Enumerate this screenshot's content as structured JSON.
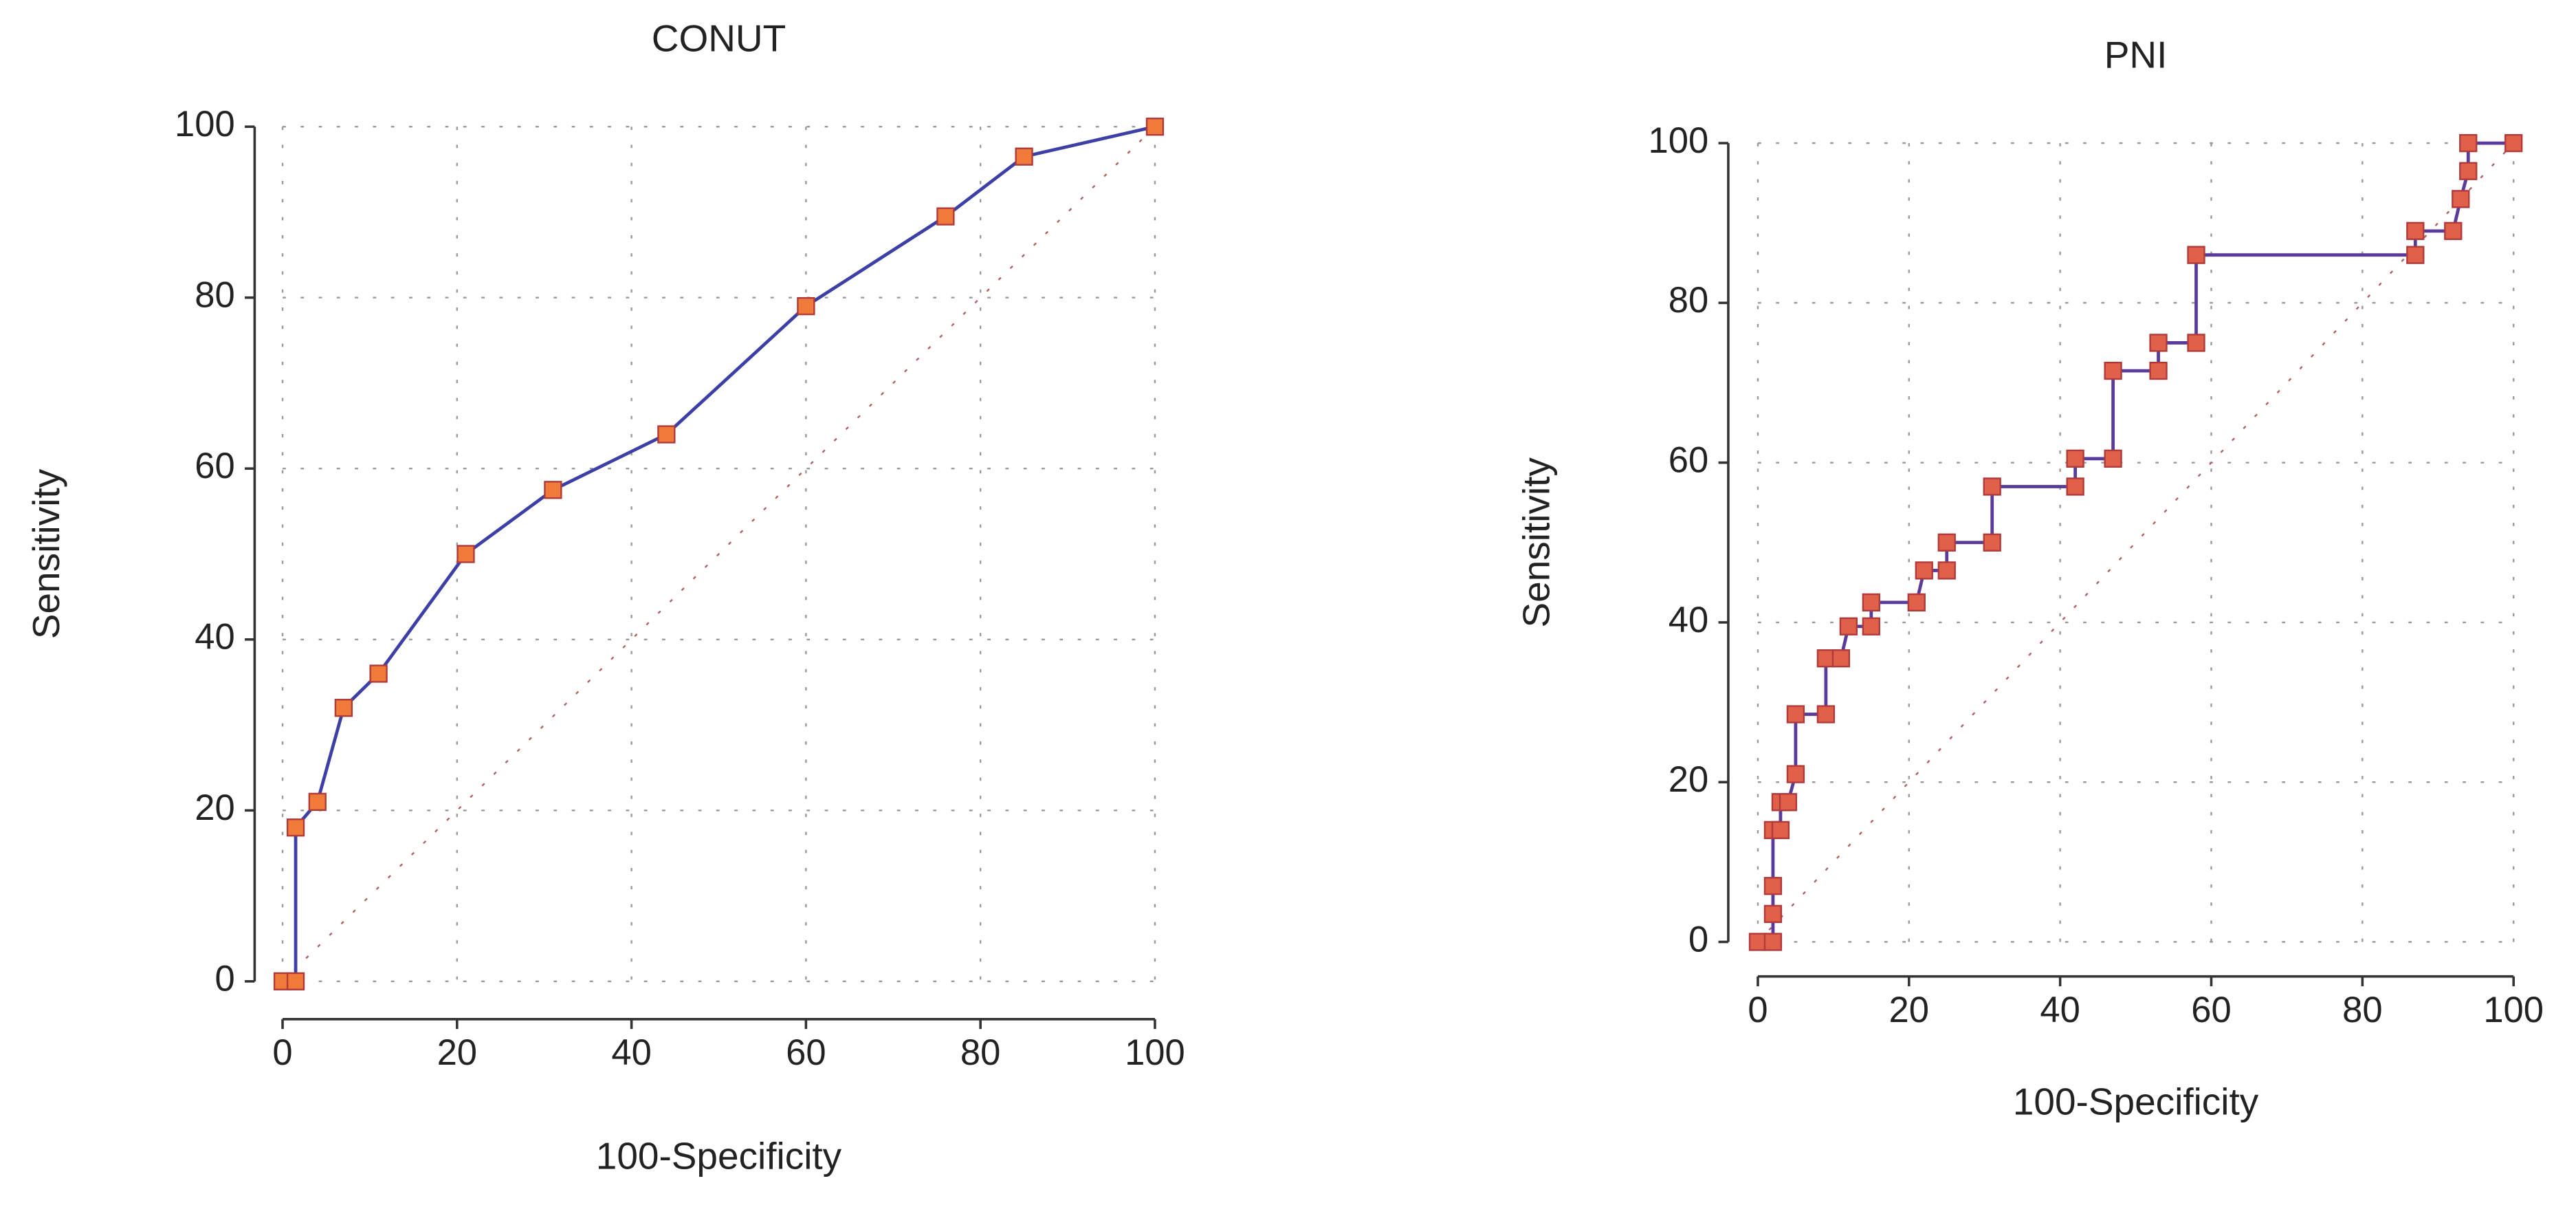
{
  "chart_data": [
    {
      "type": "line",
      "title": "CONUT",
      "xlabel": "100-Specificity",
      "ylabel": "Sensitivity",
      "x": [
        0,
        1.5,
        1.5,
        4,
        7,
        11,
        21,
        31,
        44,
        60,
        76,
        85,
        100
      ],
      "values": [
        0,
        0,
        18,
        21,
        32,
        36,
        50,
        57.5,
        64,
        79,
        89.5,
        96.5,
        100
      ],
      "color": "#3b3fa6",
      "marker_color": "#f07a3a",
      "xlim": [
        0,
        100
      ],
      "ylim": [
        0,
        100
      ],
      "xticks": [
        0,
        20,
        40,
        60,
        80,
        100
      ],
      "yticks": [
        0,
        20,
        40,
        60,
        80,
        100
      ],
      "grid": true
    },
    {
      "type": "line",
      "title": "PNI",
      "xlabel": "100-Specificity",
      "ylabel": "Sensitivity",
      "x": [
        0,
        2,
        2,
        2,
        2,
        3,
        3,
        4,
        5,
        5,
        9,
        9,
        11,
        12,
        15,
        15,
        21,
        22,
        25,
        25,
        31,
        31,
        42,
        42,
        47,
        47,
        53,
        53,
        58,
        58,
        87,
        87,
        92,
        93,
        94,
        94,
        100
      ],
      "values": [
        0,
        0,
        3.5,
        7,
        14,
        14,
        17.5,
        17.5,
        21,
        28.5,
        28.5,
        35.5,
        35.5,
        39.5,
        39.5,
        42.5,
        42.5,
        46.5,
        46.5,
        50,
        50,
        57,
        57,
        60.5,
        60.5,
        71.5,
        71.5,
        75,
        75,
        86,
        86,
        89,
        89,
        93,
        96.5,
        100,
        100
      ],
      "color": "#5a3a9a",
      "marker_color": "#e0604a",
      "xlim": [
        0,
        100
      ],
      "ylim": [
        0,
        100
      ],
      "xticks": [
        0,
        20,
        40,
        60,
        80,
        100
      ],
      "yticks": [
        0,
        20,
        40,
        60,
        80,
        100
      ],
      "grid": true
    }
  ]
}
